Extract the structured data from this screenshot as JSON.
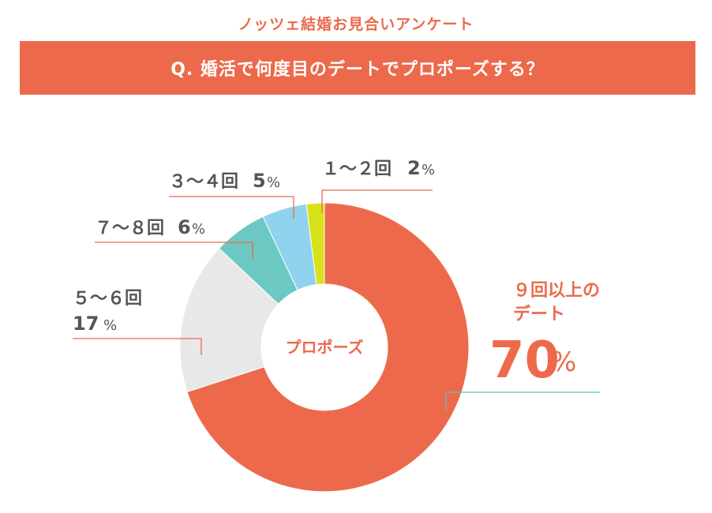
{
  "header": {
    "subtitle": "ノッツェ結婚お見合いアンケート",
    "question": "Q. 婚活で何度目のデートでプロポーズする？"
  },
  "colors": {
    "accent": "#ec6a4b",
    "text_gray": "#555555"
  },
  "chart_data": {
    "type": "pie",
    "style": "donut",
    "center_label": "プロポーズ",
    "slices": [
      {
        "label_lines": [
          "９回以上の",
          "デート"
        ],
        "value": 70,
        "value_text": "70",
        "unit": "%",
        "color": "#ec6a4b",
        "leader_color": "#5bbfbf"
      },
      {
        "label_lines": [
          "５〜６回"
        ],
        "value": 17,
        "value_text": "17",
        "unit": "%",
        "color": "#e8e8e8",
        "leader_color": "#ec6a4b"
      },
      {
        "label_lines": [
          "７〜８回"
        ],
        "value": 6,
        "value_text": "6",
        "unit": "%",
        "color": "#6cc8c2",
        "leader_color": "#ec6a4b"
      },
      {
        "label_lines": [
          "３〜４回"
        ],
        "value": 5,
        "value_text": "5",
        "unit": "%",
        "color": "#8fd3ef",
        "leader_color": "#ec6a4b"
      },
      {
        "label_lines": [
          "１〜２回"
        ],
        "value": 2,
        "value_text": "2",
        "unit": "%",
        "color": "#d7e21a",
        "leader_color": "#ec6a4b"
      }
    ]
  }
}
